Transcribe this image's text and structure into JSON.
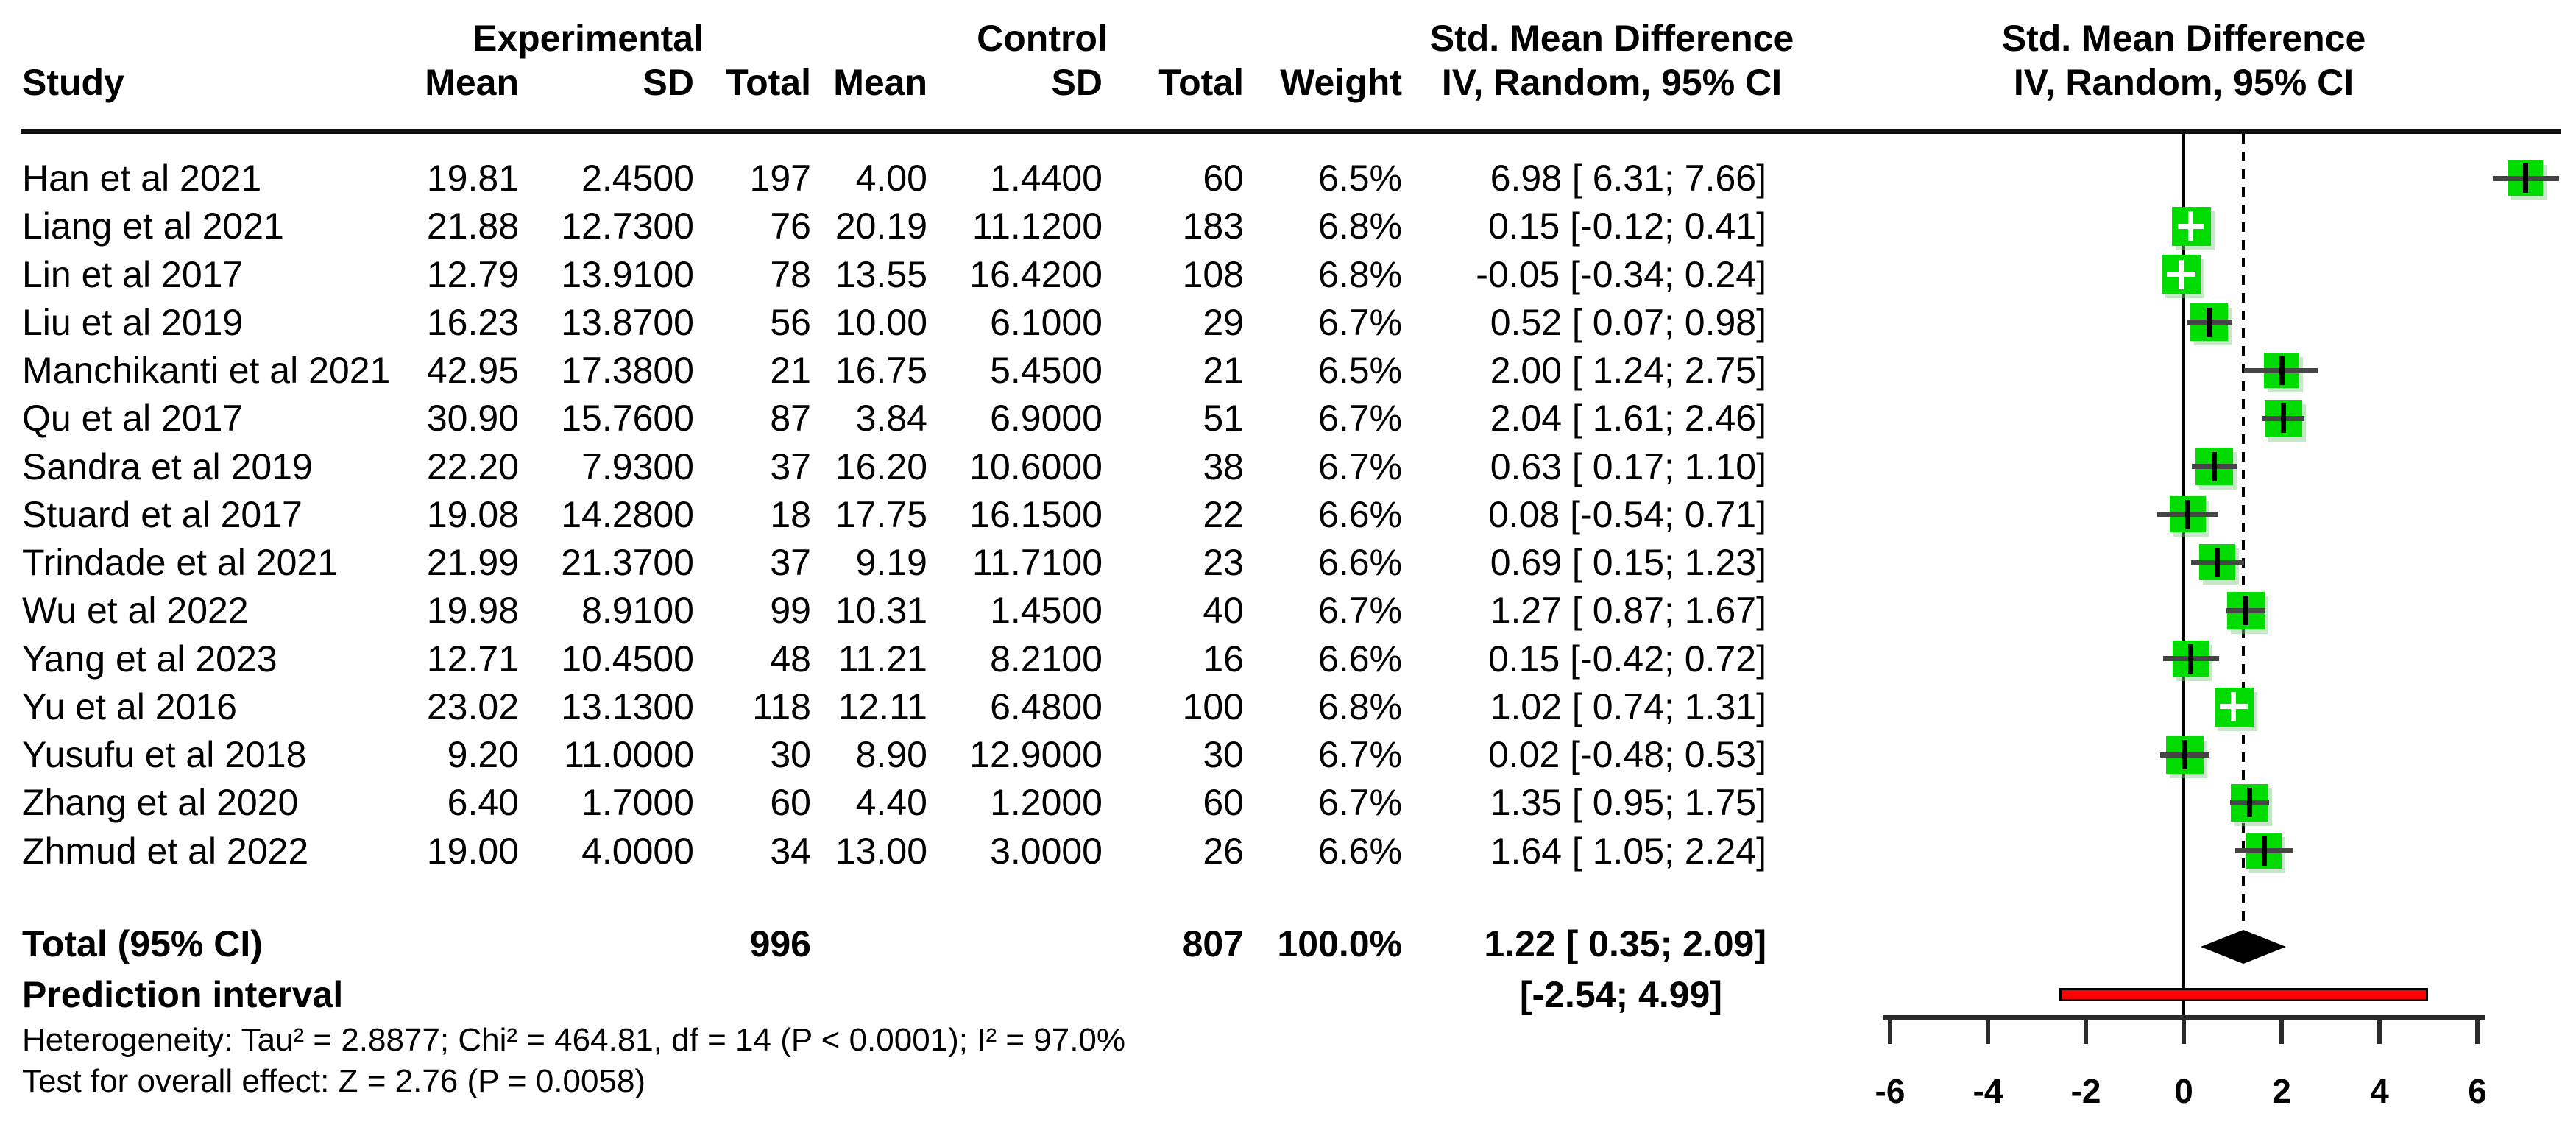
{
  "columns": {
    "group_experimental": "Experimental",
    "group_control": "Control",
    "smd_title": "Std. Mean Difference",
    "smd_subtitle": "IV, Random, 95% CI",
    "study": "Study",
    "mean": "Mean",
    "sd": "SD",
    "total": "Total",
    "weight": "Weight"
  },
  "chart_data": {
    "type": "forest",
    "effect_measure": "Std. Mean Difference, IV, Random, 95% CI",
    "x_axis": {
      "ticks": [
        -6,
        -4,
        -2,
        0,
        2,
        4,
        6
      ],
      "zero_line": 0,
      "pooled_line": 1.22,
      "grid": false
    },
    "studies": [
      {
        "study": "Han et al 2021",
        "mean_e": "19.81",
        "sd_e": "2.4500",
        "n_e": "197",
        "mean_c": "4.00",
        "sd_c": "1.4400",
        "n_c": "60",
        "weight": "6.5%",
        "weight_value": 6.5,
        "smd_label": "6.98 [ 6.31; 7.66]",
        "estimate": 6.98,
        "ci_low": 6.31,
        "ci_high": 7.66
      },
      {
        "study": "Liang et al 2021",
        "mean_e": "21.88",
        "sd_e": "12.7300",
        "n_e": "76",
        "mean_c": "20.19",
        "sd_c": "11.1200",
        "n_c": "183",
        "weight": "6.8%",
        "weight_value": 6.8,
        "smd_label": "0.15 [-0.12; 0.41]",
        "estimate": 0.15,
        "ci_low": -0.12,
        "ci_high": 0.41
      },
      {
        "study": "Lin et al 2017",
        "mean_e": "12.79",
        "sd_e": "13.9100",
        "n_e": "78",
        "mean_c": "13.55",
        "sd_c": "16.4200",
        "n_c": "108",
        "weight": "6.8%",
        "weight_value": 6.8,
        "smd_label": "-0.05 [-0.34; 0.24]",
        "estimate": -0.05,
        "ci_low": -0.34,
        "ci_high": 0.24
      },
      {
        "study": "Liu et al 2019",
        "mean_e": "16.23",
        "sd_e": "13.8700",
        "n_e": "56",
        "mean_c": "10.00",
        "sd_c": "6.1000",
        "n_c": "29",
        "weight": "6.7%",
        "weight_value": 6.7,
        "smd_label": "0.52 [ 0.07; 0.98]",
        "estimate": 0.52,
        "ci_low": 0.07,
        "ci_high": 0.98
      },
      {
        "study": "Manchikanti et al 2021",
        "mean_e": "42.95",
        "sd_e": "17.3800",
        "n_e": "21",
        "mean_c": "16.75",
        "sd_c": "5.4500",
        "n_c": "21",
        "weight": "6.5%",
        "weight_value": 6.5,
        "smd_label": "2.00 [ 1.24; 2.75]",
        "estimate": 2.0,
        "ci_low": 1.24,
        "ci_high": 2.75
      },
      {
        "study": "Qu et al 2017",
        "mean_e": "30.90",
        "sd_e": "15.7600",
        "n_e": "87",
        "mean_c": "3.84",
        "sd_c": "6.9000",
        "n_c": "51",
        "weight": "6.7%",
        "weight_value": 6.7,
        "smd_label": "2.04 [ 1.61; 2.46]",
        "estimate": 2.04,
        "ci_low": 1.61,
        "ci_high": 2.46
      },
      {
        "study": "Sandra et al 2019",
        "mean_e": "22.20",
        "sd_e": "7.9300",
        "n_e": "37",
        "mean_c": "16.20",
        "sd_c": "10.6000",
        "n_c": "38",
        "weight": "6.7%",
        "weight_value": 6.7,
        "smd_label": "0.63 [ 0.17; 1.10]",
        "estimate": 0.63,
        "ci_low": 0.17,
        "ci_high": 1.1
      },
      {
        "study": "Stuard et al 2017",
        "mean_e": "19.08",
        "sd_e": "14.2800",
        "n_e": "18",
        "mean_c": "17.75",
        "sd_c": "16.1500",
        "n_c": "22",
        "weight": "6.6%",
        "weight_value": 6.6,
        "smd_label": "0.08 [-0.54; 0.71]",
        "estimate": 0.08,
        "ci_low": -0.54,
        "ci_high": 0.71
      },
      {
        "study": "Trindade et al 2021",
        "mean_e": "21.99",
        "sd_e": "21.3700",
        "n_e": "37",
        "mean_c": "9.19",
        "sd_c": "11.7100",
        "n_c": "23",
        "weight": "6.6%",
        "weight_value": 6.6,
        "smd_label": "0.69 [ 0.15; 1.23]",
        "estimate": 0.69,
        "ci_low": 0.15,
        "ci_high": 1.23
      },
      {
        "study": "Wu et al 2022",
        "mean_e": "19.98",
        "sd_e": "8.9100",
        "n_e": "99",
        "mean_c": "10.31",
        "sd_c": "1.4500",
        "n_c": "40",
        "weight": "6.7%",
        "weight_value": 6.7,
        "smd_label": "1.27 [ 0.87; 1.67]",
        "estimate": 1.27,
        "ci_low": 0.87,
        "ci_high": 1.67
      },
      {
        "study": "Yang et al 2023",
        "mean_e": "12.71",
        "sd_e": "10.4500",
        "n_e": "48",
        "mean_c": "11.21",
        "sd_c": "8.2100",
        "n_c": "16",
        "weight": "6.6%",
        "weight_value": 6.6,
        "smd_label": "0.15 [-0.42; 0.72]",
        "estimate": 0.15,
        "ci_low": -0.42,
        "ci_high": 0.72
      },
      {
        "study": "Yu et al 2016",
        "mean_e": "23.02",
        "sd_e": "13.1300",
        "n_e": "118",
        "mean_c": "12.11",
        "sd_c": "6.4800",
        "n_c": "100",
        "weight": "6.8%",
        "weight_value": 6.8,
        "smd_label": "1.02 [ 0.74; 1.31]",
        "estimate": 1.02,
        "ci_low": 0.74,
        "ci_high": 1.31
      },
      {
        "study": "Yusufu et al 2018",
        "mean_e": "9.20",
        "sd_e": "11.0000",
        "n_e": "30",
        "mean_c": "8.90",
        "sd_c": "12.9000",
        "n_c": "30",
        "weight": "6.7%",
        "weight_value": 6.7,
        "smd_label": "0.02 [-0.48; 0.53]",
        "estimate": 0.02,
        "ci_low": -0.48,
        "ci_high": 0.53
      },
      {
        "study": "Zhang et al 2020",
        "mean_e": "6.40",
        "sd_e": "1.7000",
        "n_e": "60",
        "mean_c": "4.40",
        "sd_c": "1.2000",
        "n_c": "60",
        "weight": "6.7%",
        "weight_value": 6.7,
        "smd_label": "1.35 [ 0.95; 1.75]",
        "estimate": 1.35,
        "ci_low": 0.95,
        "ci_high": 1.75
      },
      {
        "study": "Zhmud et al 2022",
        "mean_e": "19.00",
        "sd_e": "4.0000",
        "n_e": "34",
        "mean_c": "13.00",
        "sd_c": "3.0000",
        "n_c": "26",
        "weight": "6.6%",
        "weight_value": 6.6,
        "smd_label": "1.64 [ 1.05; 2.24]",
        "estimate": 1.64,
        "ci_low": 1.05,
        "ci_high": 2.24
      }
    ],
    "total": {
      "label": "Total (95% CI)",
      "n_e": "996",
      "n_c": "807",
      "weight": "100.0%",
      "smd_label": "1.22 [ 0.35; 2.09]",
      "estimate": 1.22,
      "ci_low": 0.35,
      "ci_high": 2.09
    },
    "prediction_interval": {
      "label": "Prediction interval",
      "smd_label": "[-2.54; 4.99]",
      "ci_low": -2.54,
      "ci_high": 4.99
    },
    "footnotes": {
      "heterogeneity": "Heterogeneity: Tau² = 2.8877; Chi² = 464.81, df = 14 (P < 0.0001); I² = 97.0%",
      "overall_effect": "Test for overall effect: Z = 2.76 (P = 0.0058)"
    },
    "colors": {
      "square": "#00DC00",
      "ci_line": "#454545",
      "ci_line_inside": "#FFFFFF",
      "diamond": "#000000",
      "prediction_fill": "#FF0000",
      "prediction_border": "#000000",
      "axis": "#2B2B2B",
      "text": "#000000"
    }
  }
}
